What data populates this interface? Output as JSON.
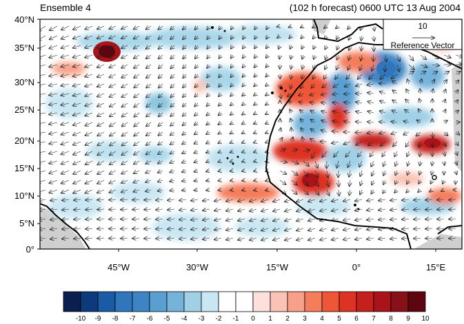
{
  "map": {
    "title_left": "Ensemble 4",
    "title_right": "(102 h forecast) 0600 UTC 13 Aug 2004",
    "lat_labels": [
      "40°N",
      "35°N",
      "30°N",
      "25°N",
      "20°N",
      "15°N",
      "10°N",
      "5°N",
      "0°"
    ],
    "lon_labels": [
      "45°W",
      "30°W",
      "15°W",
      "0°",
      "15°E"
    ],
    "lon_range": [
      -60,
      20
    ],
    "lat_range": [
      0,
      40
    ],
    "reference_vector": {
      "value_label": "10",
      "label": "Reference Vector"
    }
  },
  "colorbar": {
    "labels": [
      "-10",
      "-9",
      "-8",
      "-7",
      "-6",
      "-5",
      "-4",
      "-3",
      "-2",
      "-1",
      "0",
      "1",
      "2",
      "3",
      "4",
      "5",
      "6",
      "7",
      "8",
      "9",
      "10"
    ],
    "colors": [
      "#0a1f4f",
      "#0d3a7a",
      "#1b5aa5",
      "#2f76bc",
      "#3e84c4",
      "#5a9fd2",
      "#76b3db",
      "#9fd0e6",
      "#c9e7f3",
      "#ffffff",
      "#ffffff",
      "#fde0dc",
      "#fbc3b5",
      "#f8a188",
      "#f47d5c",
      "#ef5638",
      "#dc3324",
      "#c4211d",
      "#a9141a",
      "#881018",
      "#5e0610"
    ]
  }
}
